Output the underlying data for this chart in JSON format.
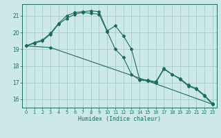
{
  "xlabel": "Humidex (Indice chaleur)",
  "bg_color": "#cde8e8",
  "grid_color": "#aacfcf",
  "line_color": "#1a6b5a",
  "xlim": [
    -0.5,
    23.5
  ],
  "ylim": [
    15.5,
    21.7
  ],
  "yticks": [
    16,
    17,
    18,
    19,
    20,
    21
  ],
  "xticks": [
    0,
    1,
    2,
    3,
    4,
    5,
    6,
    7,
    8,
    9,
    10,
    11,
    12,
    13,
    14,
    15,
    16,
    17,
    18,
    19,
    20,
    21,
    22,
    23
  ],
  "series": [
    {
      "x": [
        0,
        1,
        2,
        3,
        4,
        5,
        6,
        7,
        8,
        9,
        10,
        11,
        12,
        13,
        14,
        15,
        16,
        17,
        18,
        19,
        20,
        21,
        22,
        23
      ],
      "y": [
        19.2,
        19.35,
        19.5,
        19.9,
        20.5,
        20.85,
        21.1,
        21.2,
        21.15,
        21.1,
        20.05,
        19.0,
        18.5,
        17.5,
        17.15,
        17.1,
        17.0,
        17.8,
        17.5,
        17.2,
        16.8,
        16.6,
        16.2,
        15.7
      ]
    },
    {
      "x": [
        0,
        1,
        2,
        3,
        4,
        5,
        6,
        7,
        8,
        9,
        10,
        11,
        12,
        13,
        14,
        15,
        16,
        17,
        18,
        19,
        20,
        21,
        22,
        23
      ],
      "y": [
        19.2,
        19.4,
        19.55,
        19.95,
        20.55,
        21.0,
        21.2,
        21.25,
        21.3,
        21.25,
        20.1,
        20.4,
        19.8,
        19.0,
        17.2,
        17.15,
        17.05,
        17.85,
        17.5,
        17.25,
        16.85,
        16.65,
        16.25,
        15.75
      ]
    },
    {
      "x": [
        0,
        3,
        15,
        23
      ],
      "y": [
        19.2,
        19.1,
        17.1,
        15.7
      ]
    }
  ]
}
